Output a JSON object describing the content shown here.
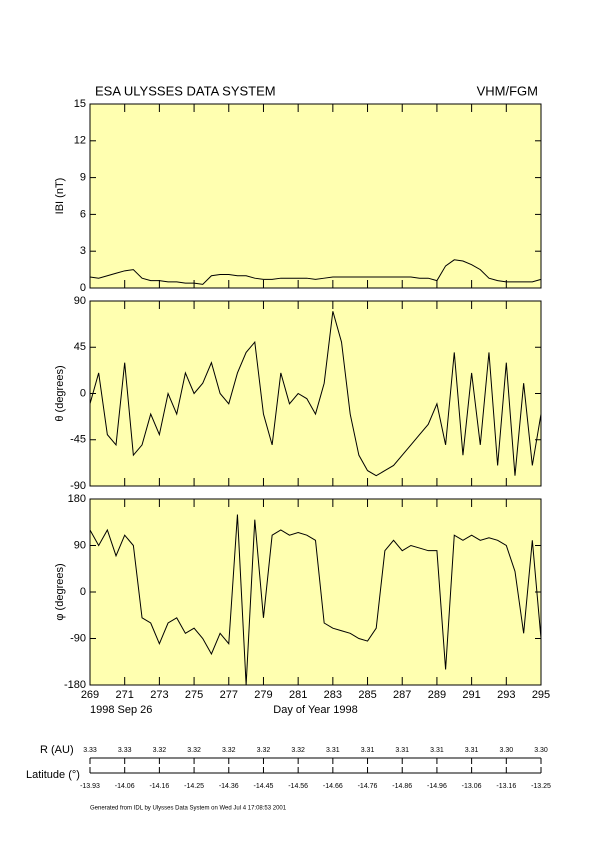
{
  "header": {
    "title": "ESA ULYSSES DATA SYSTEM",
    "instrument": "VHM/FGM"
  },
  "chart_data": [
    {
      "type": "line",
      "ylabel": "IBI (nT)",
      "color": "#000000",
      "background": "#ffffb0",
      "xlim": [
        269,
        295
      ],
      "xticks": [
        269,
        271,
        273,
        275,
        277,
        279,
        281,
        283,
        285,
        287,
        289,
        291,
        293,
        295
      ],
      "ylim": [
        0,
        15
      ],
      "yticks": [
        0,
        3,
        6,
        9,
        12,
        15
      ],
      "x": [
        269,
        269.5,
        270,
        270.5,
        271,
        271.5,
        272,
        272.5,
        273,
        273.5,
        274,
        274.5,
        275,
        275.5,
        276,
        276.5,
        277,
        277.5,
        278,
        278.5,
        279,
        279.5,
        280,
        280.5,
        281,
        281.5,
        282,
        282.5,
        283,
        283.5,
        284,
        284.5,
        285,
        285.5,
        286,
        286.5,
        287,
        287.5,
        288,
        288.5,
        289,
        289.5,
        290,
        290.5,
        291,
        291.5,
        292,
        292.5,
        293,
        293.5,
        294,
        294.5,
        295
      ],
      "values": [
        0.9,
        0.8,
        1.0,
        1.2,
        1.4,
        1.5,
        0.8,
        0.6,
        0.6,
        0.5,
        0.5,
        0.4,
        0.4,
        0.3,
        1.0,
        1.1,
        1.1,
        1.0,
        1.0,
        0.8,
        0.7,
        0.7,
        0.8,
        0.8,
        0.8,
        0.8,
        0.7,
        0.8,
        0.9,
        0.9,
        0.9,
        0.9,
        0.9,
        0.9,
        0.9,
        0.9,
        0.9,
        0.9,
        0.8,
        0.8,
        0.6,
        1.8,
        2.3,
        2.2,
        1.9,
        1.5,
        0.8,
        0.6,
        0.5,
        0.5,
        0.5,
        0.5,
        0.7
      ]
    },
    {
      "type": "line",
      "ylabel": "θ (degrees)",
      "color": "#000000",
      "background": "#ffffb0",
      "xlim": [
        269,
        295
      ],
      "xticks": [
        269,
        271,
        273,
        275,
        277,
        279,
        281,
        283,
        285,
        287,
        289,
        291,
        293,
        295
      ],
      "ylim": [
        -90,
        90
      ],
      "yticks": [
        -90,
        -45,
        0,
        45,
        90
      ],
      "x": [
        269,
        269.5,
        270,
        270.5,
        271,
        271.5,
        272,
        272.5,
        273,
        273.5,
        274,
        274.5,
        275,
        275.5,
        276,
        276.5,
        277,
        277.5,
        278,
        278.5,
        279,
        279.5,
        280,
        280.5,
        281,
        281.5,
        282,
        282.5,
        283,
        283.5,
        284,
        284.5,
        285,
        285.5,
        286,
        286.5,
        287,
        287.5,
        288,
        288.5,
        289,
        289.5,
        290,
        290.5,
        291,
        291.5,
        292,
        292.5,
        293,
        293.5,
        294,
        294.5,
        295
      ],
      "values": [
        -10,
        20,
        -40,
        -50,
        30,
        -60,
        -50,
        -20,
        -40,
        0,
        -20,
        20,
        0,
        10,
        30,
        0,
        -10,
        20,
        40,
        50,
        -20,
        -50,
        20,
        -10,
        0,
        -5,
        -20,
        10,
        80,
        50,
        -20,
        -60,
        -75,
        -80,
        -75,
        -70,
        -60,
        -50,
        -40,
        -30,
        -10,
        -50,
        40,
        -60,
        20,
        -50,
        40,
        -70,
        30,
        -80,
        10,
        -70,
        -20
      ]
    },
    {
      "type": "line",
      "ylabel": "φ (degrees)",
      "xlabel": "Day of Year 1998",
      "date": "1998 Sep 26",
      "color": "#000000",
      "background": "#ffffb0",
      "xlim": [
        269,
        295
      ],
      "xticks": [
        269,
        271,
        273,
        275,
        277,
        279,
        281,
        283,
        285,
        287,
        289,
        291,
        293,
        295
      ],
      "ylim": [
        -180,
        180
      ],
      "yticks": [
        -180,
        -90,
        0,
        90,
        180
      ],
      "x": [
        269,
        269.5,
        270,
        270.5,
        271,
        271.5,
        272,
        272.5,
        273,
        273.5,
        274,
        274.5,
        275,
        275.5,
        276,
        276.5,
        277,
        277.5,
        278,
        278.5,
        279,
        279.5,
        280,
        280.5,
        281,
        281.5,
        282,
        282.5,
        283,
        283.5,
        284,
        284.5,
        285,
        285.5,
        286,
        286.5,
        287,
        287.5,
        288,
        288.5,
        289,
        289.5,
        290,
        290.5,
        291,
        291.5,
        292,
        292.5,
        293,
        293.5,
        294,
        294.5,
        295
      ],
      "values": [
        120,
        90,
        120,
        70,
        110,
        90,
        -50,
        -60,
        -100,
        -60,
        -50,
        -80,
        -70,
        -90,
        -120,
        -80,
        -100,
        150,
        -180,
        140,
        -50,
        110,
        120,
        110,
        115,
        110,
        100,
        -60,
        -70,
        -75,
        -80,
        -90,
        -95,
        -70,
        80,
        100,
        80,
        90,
        85,
        80,
        80,
        -150,
        110,
        100,
        110,
        100,
        105,
        100,
        90,
        40,
        -80,
        100,
        -90
      ]
    }
  ],
  "orbit": {
    "r_label": "R (AU)",
    "r_values": [
      "3.33",
      "3.33",
      "3.32",
      "3.32",
      "3.32",
      "3.32",
      "3.32",
      "3.31",
      "3.31",
      "3.31",
      "3.31",
      "3.31",
      "3.30",
      "3.30"
    ],
    "lat_label": "Latitude (°)",
    "lat_values": [
      "-13.93",
      "-14.06",
      "-14.16",
      "-14.25",
      "-14.36",
      "-14.45",
      "-14.56",
      "-14.66",
      "-14.76",
      "-14.86",
      "-14.96",
      "-13.06",
      "-13.16",
      "-13.25"
    ]
  },
  "footer": "Generated from IDL by Ulysses Data System on Wed Jul  4 17:08:53 2001"
}
